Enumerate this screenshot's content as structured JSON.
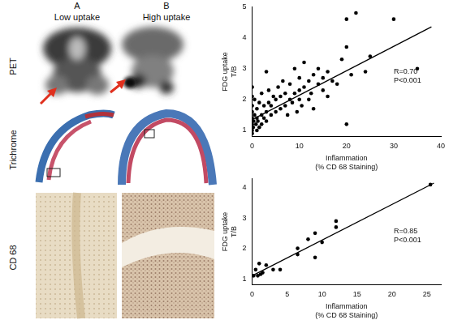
{
  "panels": {
    "columns": [
      {
        "letter": "A",
        "label": "Low uptake"
      },
      {
        "letter": "B",
        "label": "High uptake"
      }
    ],
    "rows": [
      "PET",
      "Trichrome",
      "CD 68"
    ]
  },
  "chart_data": [
    {
      "type": "scatter",
      "x_label": [
        "Inflammation",
        "(% CD 68 Staining)"
      ],
      "y_label": [
        "FDG uptake",
        "T/B"
      ],
      "xlim": [
        0,
        40
      ],
      "xticks": [
        0,
        10,
        20,
        30,
        40
      ],
      "ylim": [
        0.8,
        5
      ],
      "yticks": [
        1,
        2,
        3,
        4,
        5
      ],
      "grid": false,
      "annotations": [
        "R=0.70",
        "P<0.001"
      ],
      "series": [
        {
          "type": "scatter",
          "color": "#000000",
          "marker": "circle",
          "x": [
            0,
            0,
            0,
            0,
            0,
            0,
            0,
            0,
            0.2,
            0.3,
            0.5,
            0.5,
            0.8,
            1,
            1,
            1,
            1.2,
            1.5,
            1.5,
            2,
            2,
            2,
            2.5,
            2.5,
            3,
            3,
            3,
            3.5,
            3.5,
            4,
            4,
            4.5,
            5,
            5,
            5.5,
            6,
            6,
            6.5,
            7,
            7,
            7.5,
            8,
            8,
            8.5,
            9,
            9,
            9.5,
            10,
            10,
            10,
            10.5,
            11,
            11,
            12,
            12,
            12.5,
            13,
            13,
            14,
            14,
            15,
            15,
            16,
            16,
            17,
            18,
            19,
            20,
            20,
            20,
            21,
            22,
            24,
            25,
            30,
            35
          ],
          "values": [
            1.0,
            1.2,
            1.4,
            1.6,
            1.8,
            2.1,
            2.4,
            0.9,
            1.1,
            1.3,
            1.5,
            2.0,
            1.2,
            1.0,
            1.4,
            1.7,
            1.3,
            1.1,
            1.9,
            1.2,
            1.5,
            2.2,
            1.4,
            1.8,
            1.3,
            1.6,
            2.9,
            1.9,
            2.3,
            1.5,
            1.8,
            2.1,
            1.6,
            2.0,
            2.4,
            1.7,
            2.1,
            2.6,
            1.8,
            2.2,
            1.5,
            2.0,
            2.5,
            1.9,
            2.2,
            3.0,
            1.6,
            2.0,
            2.3,
            2.7,
            1.8,
            2.4,
            3.2,
            2.0,
            2.6,
            2.2,
            2.8,
            1.7,
            2.5,
            3.0,
            2.3,
            2.7,
            2.9,
            2.1,
            2.6,
            2.5,
            3.3,
            3.7,
            4.6,
            1.2,
            2.8,
            4.8,
            2.9,
            3.4,
            4.6,
            3.0
          ]
        },
        {
          "type": "line",
          "color": "#000000",
          "line_style": "solid",
          "x": [
            0,
            38
          ],
          "values": [
            1.35,
            4.35
          ]
        }
      ]
    },
    {
      "type": "scatter",
      "x_label": [
        "Inflammation",
        "(% CD 68 Staining)"
      ],
      "y_label": [
        "FDG uptake",
        "T/B"
      ],
      "xlim": [
        0,
        27
      ],
      "xticks": [
        0,
        5,
        10,
        15,
        20,
        25
      ],
      "ylim": [
        0.8,
        4.3
      ],
      "yticks": [
        1,
        2,
        3,
        4
      ],
      "grid": false,
      "annotations": [
        "R=0.85",
        "P<0.001"
      ],
      "series": [
        {
          "type": "scatter",
          "color": "#000000",
          "marker": "circle",
          "x": [
            0.2,
            0.5,
            0.8,
            1,
            1.2,
            1.5,
            2,
            3,
            4,
            6.5,
            6.5,
            8,
            9,
            9,
            10,
            12,
            12,
            25.5
          ],
          "values": [
            1.1,
            1.3,
            1.1,
            1.5,
            1.15,
            1.2,
            1.45,
            1.3,
            1.3,
            1.8,
            2.0,
            2.3,
            2.5,
            1.7,
            2.2,
            2.9,
            2.7,
            4.1
          ]
        },
        {
          "type": "line",
          "color": "#000000",
          "line_style": "solid",
          "x": [
            0,
            26
          ],
          "values": [
            1.1,
            4.15
          ]
        }
      ]
    }
  ]
}
